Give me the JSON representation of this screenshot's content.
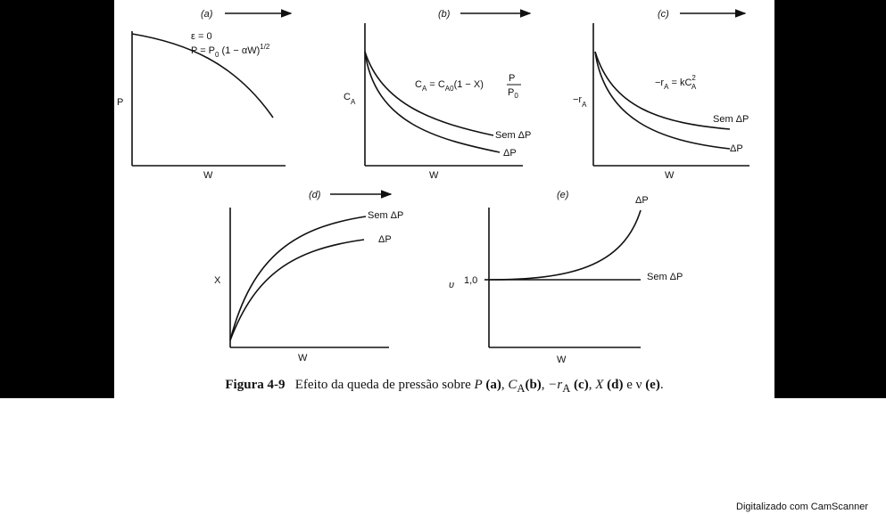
{
  "panels": {
    "a": {
      "tag": "(a)",
      "xlabel": "W",
      "ylabel": "P",
      "eq1": "ε = 0",
      "eq2": "P = P",
      "eq2_sub": "0",
      "eq2_rest": " (1 − αW)",
      "eq2_sup": "1/2"
    },
    "b": {
      "tag": "(b)",
      "xlabel": "W",
      "ylabel": "C",
      "ylabel_sub": "A",
      "eq_left": "C",
      "eq_left_sub": "A",
      "eq_mid": " = C",
      "eq_mid_sub": "A0",
      "eq_rest": "(1 − X)",
      "frac_num": "P",
      "frac_den": "P",
      "frac_den_sub": "0",
      "curve_top": "Sem ΔP",
      "curve_bottom": "ΔP"
    },
    "c": {
      "tag": "(c)",
      "xlabel": "W",
      "ylabel": "−r",
      "ylabel_sub": "A",
      "eq_left": "−r",
      "eq_left_sub": "A",
      "eq_mid": " = kC",
      "eq_sup": "2",
      "eq_sub": "A",
      "curve_top": "Sem ΔP",
      "curve_bottom": "ΔP"
    },
    "d": {
      "tag": "(d)",
      "xlabel": "W",
      "ylabel": "X",
      "curve_top": "Sem ΔP",
      "curve_bottom": "ΔP"
    },
    "e": {
      "tag": "(e)",
      "xlabel": "W",
      "ylabel": "υ",
      "tick": "1,0",
      "curve_up": "ΔP",
      "curve_flat": "Sem ΔP"
    }
  },
  "caption": {
    "label": "Figura 4-9",
    "text_1": "Efeito da queda de pressão sobre ",
    "p": "P",
    "a": "(a)",
    "ca": "C",
    "ca_sub": "A",
    "b": "(b)",
    "ra": "−r",
    "ra_sub": "A",
    "c": "(c)",
    "x": "X",
    "d": "(d)",
    "and": " e ",
    "nu": "ν",
    "e": "(e)"
  },
  "watermark": "Digitalizado com CamScanner"
}
